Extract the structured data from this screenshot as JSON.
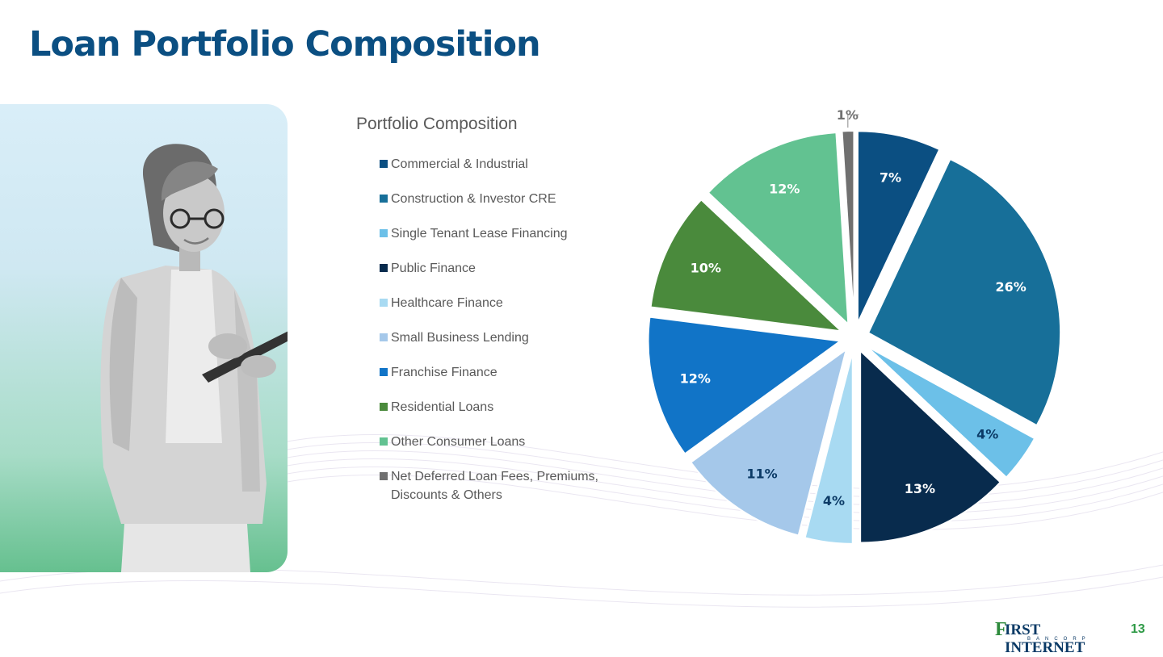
{
  "slide": {
    "title": "Loan Portfolio Composition",
    "page_number": "13"
  },
  "logo": {
    "mark": "F",
    "name": "IRST INTERNET",
    "subtitle": "BANCORP"
  },
  "photo": {
    "icon": "woman-with-tablet-photo"
  },
  "chart_data": {
    "type": "pie",
    "title": "Portfolio Composition",
    "legend_position": "left",
    "slices": [
      {
        "label": "Commercial & Industrial",
        "value": 7,
        "display": "7%",
        "color": "#0b4f82"
      },
      {
        "label": "Construction & Investor CRE",
        "value": 26,
        "display": "26%",
        "color": "#176f99"
      },
      {
        "label": "Single Tenant Lease Financing",
        "value": 4,
        "display": "4%",
        "color": "#6cc0e8"
      },
      {
        "label": "Public Finance",
        "value": 13,
        "display": "13%",
        "color": "#082b4d"
      },
      {
        "label": "Healthcare Finance",
        "value": 4,
        "display": "4%",
        "color": "#a8daf2"
      },
      {
        "label": "Small Business Lending",
        "value": 11,
        "display": "11%",
        "color": "#a5c8ea"
      },
      {
        "label": "Franchise Finance",
        "value": 12,
        "display": "12%",
        "color": "#1174c7"
      },
      {
        "label": "Residential Loans",
        "value": 10,
        "display": "10%",
        "color": "#4a8a3c"
      },
      {
        "label": "Other Consumer Loans",
        "value": 12,
        "display": "12%",
        "color": "#62c291"
      },
      {
        "label": "Net Deferred Loan Fees, Premiums, Discounts & Others",
        "value": 1,
        "display": "1%",
        "color": "#707070"
      }
    ]
  }
}
